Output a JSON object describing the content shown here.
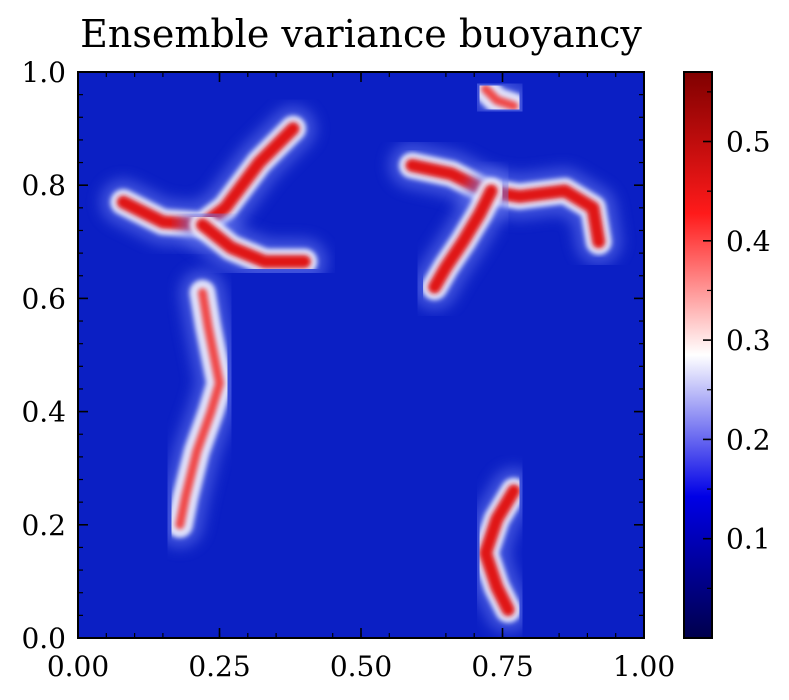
{
  "chart_data": {
    "type": "heatmap",
    "title": "Ensemble variance buoyancy",
    "xlabel": "",
    "ylabel": "",
    "xlim": [
      0.0,
      1.0
    ],
    "ylim": [
      0.0,
      1.0
    ],
    "x_ticks": [
      "0.00",
      "0.25",
      "0.50",
      "0.75",
      "1.00"
    ],
    "y_ticks": [
      "0.0",
      "0.2",
      "0.4",
      "0.6",
      "0.8",
      "1.0"
    ],
    "colorbar": {
      "range": [
        0.0,
        0.57
      ],
      "ticks": [
        "0.1",
        "0.2",
        "0.3",
        "0.4",
        "0.5"
      ],
      "colormap": "seismic"
    },
    "grid": false,
    "features": [
      {
        "name": "upper-left filament",
        "points": [
          [
            0.08,
            0.77
          ],
          [
            0.15,
            0.735
          ],
          [
            0.22,
            0.73
          ],
          [
            0.26,
            0.76
          ],
          [
            0.32,
            0.84
          ],
          [
            0.38,
            0.9
          ]
        ],
        "value": 0.5
      },
      {
        "name": "lower arm",
        "points": [
          [
            0.22,
            0.73
          ],
          [
            0.27,
            0.69
          ],
          [
            0.33,
            0.665
          ],
          [
            0.4,
            0.665
          ]
        ],
        "value": 0.5
      },
      {
        "name": "upper-right arc",
        "points": [
          [
            0.59,
            0.835
          ],
          [
            0.66,
            0.82
          ],
          [
            0.72,
            0.79
          ],
          [
            0.78,
            0.78
          ],
          [
            0.86,
            0.79
          ],
          [
            0.91,
            0.76
          ],
          [
            0.92,
            0.7
          ]
        ],
        "value": 0.45
      },
      {
        "name": "arc downstroke",
        "points": [
          [
            0.73,
            0.79
          ],
          [
            0.71,
            0.75
          ],
          [
            0.68,
            0.7
          ],
          [
            0.65,
            0.655
          ],
          [
            0.63,
            0.62
          ]
        ],
        "value": 0.5
      },
      {
        "name": "vertical band",
        "points": [
          [
            0.22,
            0.61
          ],
          [
            0.23,
            0.55
          ],
          [
            0.24,
            0.5
          ],
          [
            0.25,
            0.45
          ],
          [
            0.235,
            0.4
          ],
          [
            0.21,
            0.33
          ],
          [
            0.19,
            0.25
          ],
          [
            0.18,
            0.2
          ]
        ],
        "value": 0.4
      },
      {
        "name": "bottom plume",
        "points": [
          [
            0.77,
            0.26
          ],
          [
            0.74,
            0.21
          ],
          [
            0.72,
            0.15
          ],
          [
            0.74,
            0.09
          ],
          [
            0.76,
            0.05
          ]
        ],
        "value": 0.45
      },
      {
        "name": "top-right patch",
        "points": [
          [
            0.72,
            0.97
          ],
          [
            0.74,
            0.95
          ],
          [
            0.77,
            0.94
          ]
        ],
        "value": 0.42
      }
    ]
  }
}
